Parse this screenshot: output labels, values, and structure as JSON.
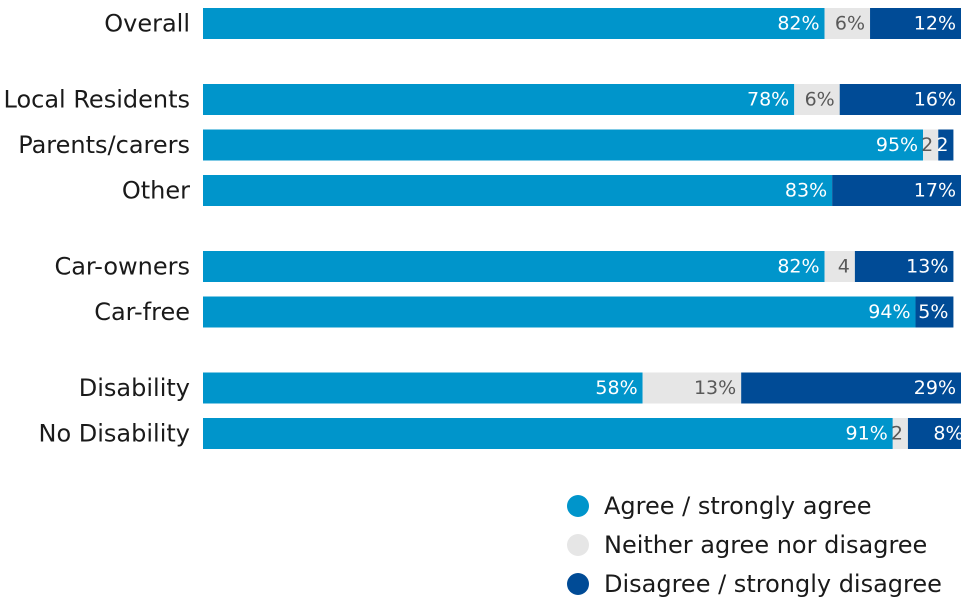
{
  "chart_data": {
    "type": "bar",
    "orientation": "horizontal",
    "stacked": true,
    "percent_scale": true,
    "grid": false,
    "legend_position": "bottom-right",
    "title": "",
    "xlabel": "",
    "ylabel": "",
    "xlim": [
      0,
      100
    ],
    "groups": [
      [
        "Overall"
      ],
      [
        "Local Residents",
        "Parents/carers",
        "Other"
      ],
      [
        "Car-owners",
        "Car-free"
      ],
      [
        "Disability",
        "No Disability"
      ]
    ],
    "categories": [
      "Overall",
      "Local Residents",
      "Parents/carers",
      "Other",
      "Car-owners",
      "Car-free",
      "Disability",
      "No Disability"
    ],
    "series": [
      {
        "name": "Agree / strongly agree",
        "color": "#0095cb",
        "label_color": "#ffffff",
        "values": [
          82,
          78,
          95,
          83,
          82,
          94,
          58,
          91
        ],
        "labels": [
          "82%",
          "78%",
          "95%",
          "83%",
          "82%",
          "94%",
          "58%",
          "91%"
        ]
      },
      {
        "name": "Neither agree nor disagree",
        "color": "#e6e6e6",
        "label_color": "#595959",
        "values": [
          6,
          6,
          2,
          0,
          4,
          0,
          13,
          2
        ],
        "labels": [
          "6%",
          "6%",
          "2",
          "",
          "4",
          "",
          "13%",
          "2"
        ]
      },
      {
        "name": "Disagree / strongly disagree",
        "color": "#004b96",
        "label_color": "#ffffff",
        "values": [
          12,
          16,
          2,
          17,
          13,
          5,
          29,
          8
        ],
        "labels": [
          "12%",
          "16%",
          "2",
          "17%",
          "13%",
          "5%",
          "29%",
          "8%"
        ]
      }
    ]
  }
}
